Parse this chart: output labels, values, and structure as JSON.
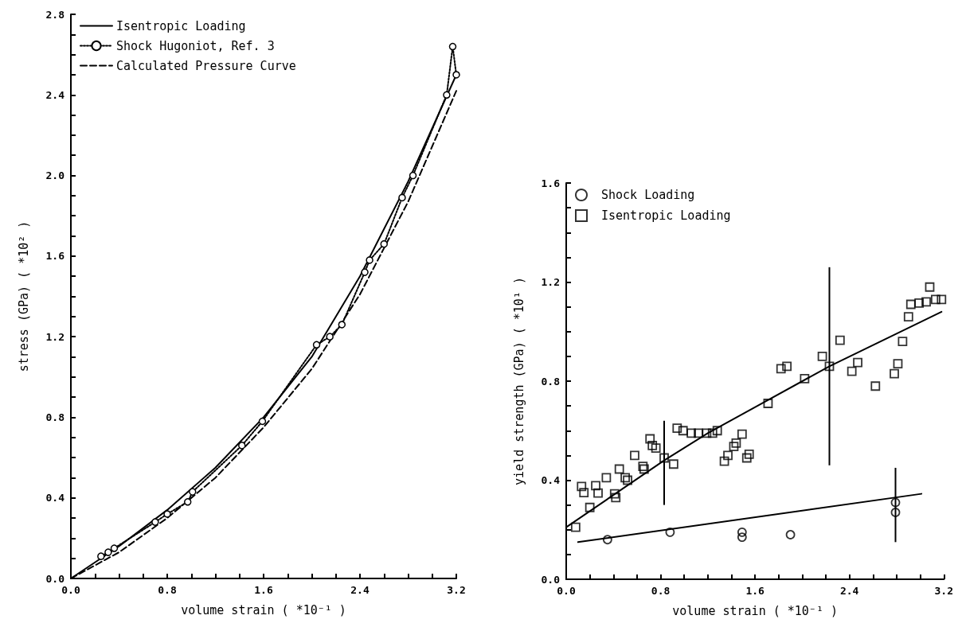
{
  "chart_data": [
    {
      "type": "line",
      "xlabel": "volume strain ( *10⁻¹ )",
      "ylabel": "stress (GPa) ( *10² )",
      "xlim": [
        0,
        3.2
      ],
      "ylim": [
        0,
        2.8
      ],
      "xticks": [
        {
          "value": 0,
          "label": "0.0"
        },
        {
          "value": 0.2,
          "label": null
        },
        {
          "value": 0.4,
          "label": null
        },
        {
          "value": 0.6,
          "label": null
        },
        {
          "value": 0.8,
          "label": "0.8"
        },
        {
          "value": 1.0,
          "label": null
        },
        {
          "value": 1.2,
          "label": null
        },
        {
          "value": 1.4,
          "label": null
        },
        {
          "value": 1.6,
          "label": "1.6"
        },
        {
          "value": 1.8,
          "label": null
        },
        {
          "value": 2.0,
          "label": null
        },
        {
          "value": 2.2,
          "label": null
        },
        {
          "value": 2.4,
          "label": "2.4"
        },
        {
          "value": 2.6,
          "label": null
        },
        {
          "value": 2.8,
          "label": null
        },
        {
          "value": 3.0,
          "label": null
        },
        {
          "value": 3.2,
          "label": "3.2"
        }
      ],
      "yticks": [
        {
          "value": 0,
          "label": "0.0"
        },
        {
          "value": 0.1,
          "label": null
        },
        {
          "value": 0.2,
          "label": null
        },
        {
          "value": 0.3,
          "label": null
        },
        {
          "value": 0.4,
          "label": "0.4"
        },
        {
          "value": 0.5,
          "label": null
        },
        {
          "value": 0.6,
          "label": null
        },
        {
          "value": 0.7,
          "label": null
        },
        {
          "value": 0.8,
          "label": "0.8"
        },
        {
          "value": 0.9,
          "label": null
        },
        {
          "value": 1.0,
          "label": null
        },
        {
          "value": 1.1,
          "label": null
        },
        {
          "value": 1.2,
          "label": "1.2"
        },
        {
          "value": 1.3,
          "label": null
        },
        {
          "value": 1.4,
          "label": null
        },
        {
          "value": 1.5,
          "label": null
        },
        {
          "value": 1.6,
          "label": "1.6"
        },
        {
          "value": 1.7,
          "label": null
        },
        {
          "value": 1.8,
          "label": null
        },
        {
          "value": 1.9,
          "label": null
        },
        {
          "value": 2.0,
          "label": "2.0"
        },
        {
          "value": 2.1,
          "label": null
        },
        {
          "value": 2.2,
          "label": null
        },
        {
          "value": 2.3,
          "label": null
        },
        {
          "value": 2.4,
          "label": "2.4"
        },
        {
          "value": 2.5,
          "label": null
        },
        {
          "value": 2.6,
          "label": null
        },
        {
          "value": 2.7,
          "label": null
        },
        {
          "value": 2.8,
          "label": "2.8"
        }
      ],
      "legend": "top left",
      "series": [
        {
          "name": "Isentropic Loading",
          "color": "#000000",
          "line_style": "solid",
          "x": [
            0,
            0.4,
            0.8,
            1.2,
            1.6,
            2.0,
            2.4,
            2.8,
            3.2
          ],
          "values": [
            0,
            0.16,
            0.34,
            0.55,
            0.8,
            1.1,
            1.5,
            1.97,
            2.5
          ]
        },
        {
          "name": "Shock Hugoniot, Ref. 3",
          "color": "#000000",
          "line_style": "dotted",
          "marker": "circle",
          "x": [
            0.25,
            0.31,
            0.36,
            0.7,
            0.8,
            0.97,
            1.01,
            1.42,
            1.59,
            2.04,
            2.15,
            2.25,
            2.44,
            2.48,
            2.6,
            2.75,
            2.84,
            3.12,
            3.17,
            3.2
          ],
          "values": [
            0.11,
            0.13,
            0.15,
            0.28,
            0.32,
            0.38,
            0.43,
            0.66,
            0.78,
            1.16,
            1.2,
            1.26,
            1.52,
            1.58,
            1.66,
            1.89,
            2.0,
            2.4,
            2.64,
            2.5
          ]
        },
        {
          "name": "Calculated Pressure Curve",
          "color": "#000000",
          "line_style": "dashed",
          "x": [
            0,
            0.4,
            0.8,
            1.2,
            1.6,
            2.0,
            2.4,
            2.8,
            3.2
          ],
          "values": [
            0,
            0.13,
            0.3,
            0.5,
            0.75,
            1.04,
            1.41,
            1.87,
            2.42
          ]
        }
      ]
    },
    {
      "type": "scatter",
      "xlabel": "volume strain ( *10⁻¹ )",
      "ylabel": "yield strength (GPa) ( *10¹ )",
      "xlim": [
        0,
        3.2
      ],
      "ylim": [
        0,
        1.6
      ],
      "xticks": [
        {
          "value": 0,
          "label": "0.0"
        },
        {
          "value": 0.2,
          "label": null
        },
        {
          "value": 0.4,
          "label": null
        },
        {
          "value": 0.6,
          "label": null
        },
        {
          "value": 0.8,
          "label": "0.8"
        },
        {
          "value": 1.0,
          "label": null
        },
        {
          "value": 1.2,
          "label": null
        },
        {
          "value": 1.4,
          "label": null
        },
        {
          "value": 1.6,
          "label": "1.6"
        },
        {
          "value": 1.8,
          "label": null
        },
        {
          "value": 2.0,
          "label": null
        },
        {
          "value": 2.2,
          "label": null
        },
        {
          "value": 2.4,
          "label": "2.4"
        },
        {
          "value": 2.6,
          "label": null
        },
        {
          "value": 2.8,
          "label": null
        },
        {
          "value": 3.0,
          "label": null
        },
        {
          "value": 3.2,
          "label": "3.2"
        }
      ],
      "yticks": [
        {
          "value": 0,
          "label": "0.0"
        },
        {
          "value": 0.1,
          "label": null
        },
        {
          "value": 0.2,
          "label": null
        },
        {
          "value": 0.3,
          "label": null
        },
        {
          "value": 0.4,
          "label": "0.4"
        },
        {
          "value": 0.5,
          "label": null
        },
        {
          "value": 0.6,
          "label": null
        },
        {
          "value": 0.7,
          "label": null
        },
        {
          "value": 0.8,
          "label": "0.8"
        },
        {
          "value": 0.9,
          "label": null
        },
        {
          "value": 1.0,
          "label": null
        },
        {
          "value": 1.1,
          "label": null
        },
        {
          "value": 1.2,
          "label": "1.2"
        },
        {
          "value": 1.3,
          "label": null
        },
        {
          "value": 1.4,
          "label": null
        },
        {
          "value": 1.5,
          "label": null
        },
        {
          "value": 1.6,
          "label": "1.6"
        }
      ],
      "legend": "top left",
      "series": [
        {
          "name": "Shock Loading",
          "color": "#000000",
          "marker": "circle",
          "x": [
            0.35,
            0.88,
            1.49,
            1.49,
            1.9,
            2.79,
            2.79
          ],
          "values": [
            0.16,
            0.19,
            0.19,
            0.17,
            0.18,
            0.31,
            0.27
          ],
          "errors": [
            null,
            null,
            null,
            null,
            null,
            null,
            [
              0.15,
              0.45
            ]
          ]
        },
        {
          "name": "Isentropic Loading",
          "color": "#000000",
          "marker": "square",
          "x": [
            0.08,
            0.13,
            0.15,
            0.2,
            0.25,
            0.27,
            0.34,
            0.41,
            0.42,
            0.45,
            0.5,
            0.52,
            0.58,
            0.65,
            0.66,
            0.71,
            0.73,
            0.76,
            0.83,
            0.91,
            0.94,
            0.99,
            1.06,
            1.12,
            1.19,
            1.24,
            1.28,
            1.34,
            1.37,
            1.42,
            1.44,
            1.49,
            1.53,
            1.55,
            1.71,
            1.82,
            1.87,
            2.02,
            2.17,
            2.23,
            2.32,
            2.42,
            2.47,
            2.62,
            2.78,
            2.81,
            2.85,
            2.9,
            2.92,
            2.99,
            3.05,
            3.08,
            3.13,
            3.18
          ],
          "values": [
            0.21,
            0.375,
            0.35,
            0.29,
            0.378,
            0.348,
            0.41,
            0.345,
            0.33,
            0.445,
            0.41,
            0.4,
            0.5,
            0.456,
            0.445,
            0.567,
            0.54,
            0.53,
            0.49,
            0.465,
            0.61,
            0.6,
            0.59,
            0.59,
            0.59,
            0.59,
            0.6,
            0.477,
            0.5,
            0.536,
            0.55,
            0.586,
            0.49,
            0.505,
            0.71,
            0.85,
            0.86,
            0.81,
            0.9,
            0.86,
            0.965,
            0.84,
            0.875,
            0.78,
            0.83,
            0.87,
            0.96,
            1.06,
            1.11,
            1.115,
            1.12,
            1.18,
            1.13,
            1.13
          ],
          "errors": [
            null,
            null,
            null,
            null,
            null,
            null,
            null,
            null,
            null,
            null,
            null,
            null,
            null,
            null,
            null,
            null,
            null,
            null,
            [
              0.3,
              0.64
            ],
            null,
            null,
            null,
            null,
            null,
            null,
            null,
            null,
            null,
            null,
            null,
            null,
            null,
            null,
            null,
            null,
            null,
            null,
            null,
            null,
            [
              0.46,
              1.26
            ],
            null,
            null,
            null,
            null,
            null,
            null,
            null,
            null,
            null,
            null,
            null,
            null,
            null,
            null
          ]
        },
        {
          "type": "line",
          "color": "#000000",
          "line_style": "solid",
          "x": [
            0,
            0.83,
            1.2,
            2.23,
            3.18
          ],
          "values": [
            0.21,
            0.48,
            0.59,
            0.86,
            1.08
          ]
        },
        {
          "type": "line",
          "color": "#000000",
          "line_style": "solid",
          "x": [
            0.1,
            3.01
          ],
          "values": [
            0.15,
            0.345
          ]
        }
      ]
    }
  ]
}
